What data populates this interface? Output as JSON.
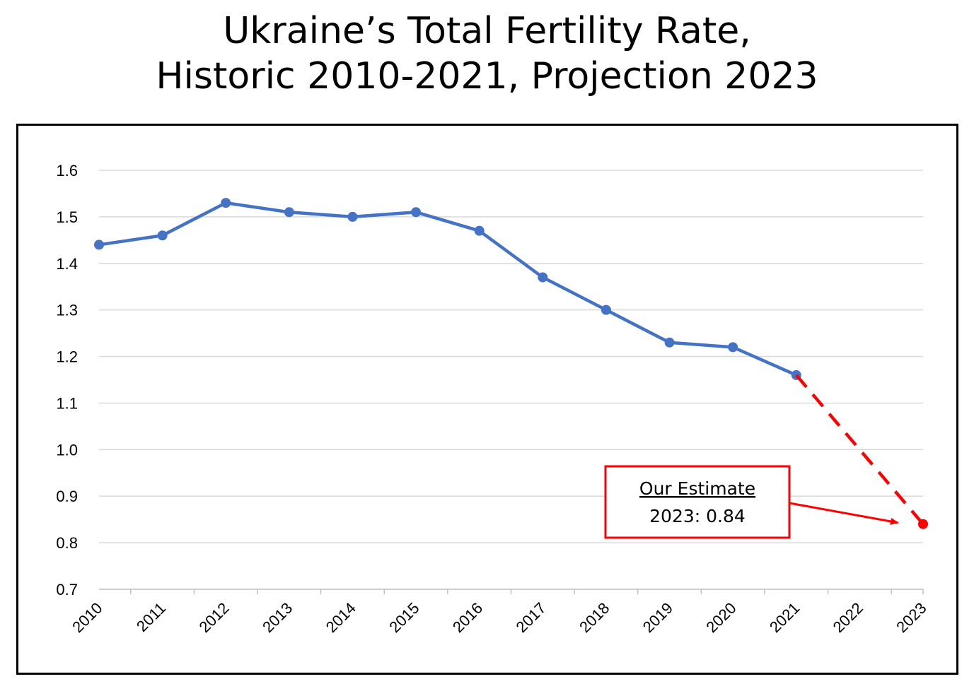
{
  "chart_data": {
    "type": "line",
    "title_lines": [
      "Ukraine’s Total Fertility Rate,",
      "Historic 2010-2021, Projection 2023"
    ],
    "x": [
      "2010",
      "2011",
      "2012",
      "2013",
      "2014",
      "2015",
      "2016",
      "2017",
      "2018",
      "2019",
      "2020",
      "2021",
      "2022",
      "2023"
    ],
    "yticks": [
      "0.7",
      "0.8",
      "0.9",
      "1.0",
      "1.1",
      "1.2",
      "1.3",
      "1.4",
      "1.5",
      "1.6"
    ],
    "ylim": [
      0.7,
      1.6
    ],
    "grid": true,
    "legend": "none",
    "series": [
      {
        "style": "solid",
        "color": "#4472C4",
        "points": [
          {
            "x": "2010",
            "y": 1.44
          },
          {
            "x": "2011",
            "y": 1.46
          },
          {
            "x": "2012",
            "y": 1.53
          },
          {
            "x": "2013",
            "y": 1.51
          },
          {
            "x": "2014",
            "y": 1.5
          },
          {
            "x": "2015",
            "y": 1.51
          },
          {
            "x": "2016",
            "y": 1.47
          },
          {
            "x": "2017",
            "y": 1.37
          },
          {
            "x": "2018",
            "y": 1.3
          },
          {
            "x": "2019",
            "y": 1.23
          },
          {
            "x": "2020",
            "y": 1.22
          },
          {
            "x": "2021",
            "y": 1.16
          }
        ]
      },
      {
        "style": "dashed",
        "color": "#FF0000",
        "points": [
          {
            "x": "2021",
            "y": 1.16
          },
          {
            "x": "2023",
            "y": 0.84
          }
        ]
      }
    ],
    "annotation": {
      "heading": "Our Estimate",
      "text": "2023: 0.84",
      "target_x": "2023",
      "target_y": 0.84,
      "color": "#FF0000"
    }
  }
}
